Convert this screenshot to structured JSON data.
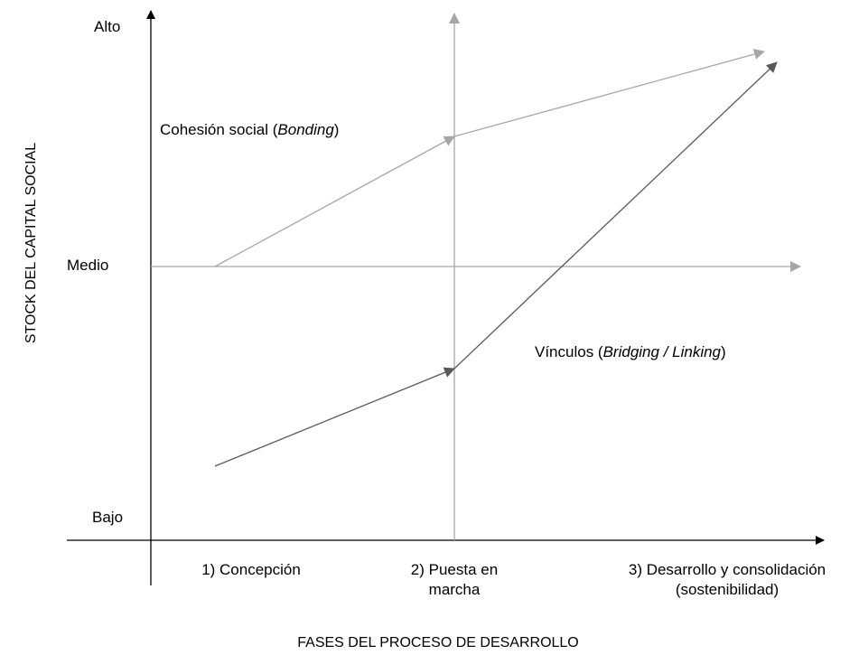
{
  "y_axis": {
    "title": "STOCK DEL CAPITAL SOCIAL",
    "levels": [
      "Alto",
      "Medio",
      "Bajo"
    ]
  },
  "x_axis": {
    "title": "FASES DEL PROCESO DE DESARROLLO",
    "phases": [
      {
        "line1": "1) Concepción",
        "line2": ""
      },
      {
        "line1": "2) Puesta en",
        "line2": "marcha"
      },
      {
        "line1": "3) Desarrollo y consolidación",
        "line2": "(sostenibilidad)"
      }
    ]
  },
  "lines": {
    "bonding": {
      "text": "Cohesión social (",
      "italic": "Bonding",
      "close": ")",
      "color": "#a6a6a6"
    },
    "bridging": {
      "text": "Vínculos (",
      "italic": "Bridging / Linking",
      "close": ")",
      "color": "#595959"
    }
  },
  "colors": {
    "axis": "#000000",
    "guide": "#a6a6a6"
  }
}
